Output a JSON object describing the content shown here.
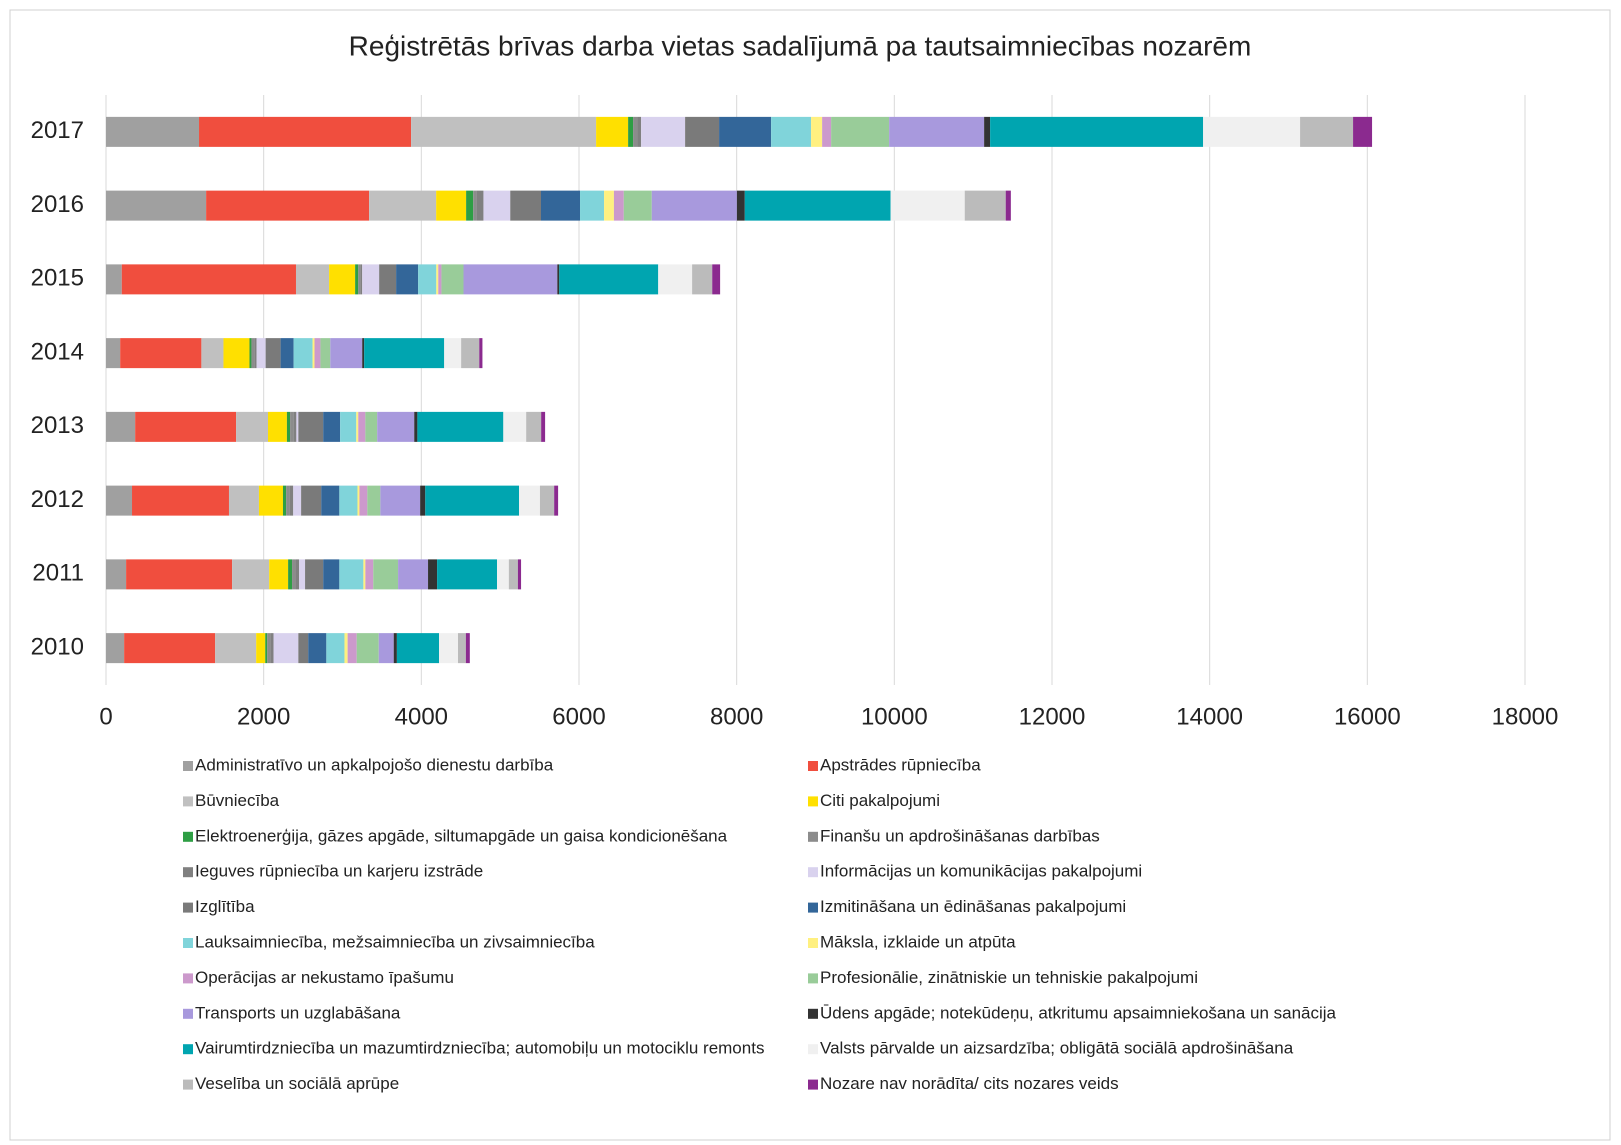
{
  "chart_data": {
    "type": "stacked_barh",
    "title": "Reģistrētās brīvas darba vietas sadalījumā pa tautsaimniecības nozarēm",
    "categories": [
      "2010",
      "2011",
      "2012",
      "2013",
      "2014",
      "2015",
      "2016",
      "2017"
    ],
    "xlim": [
      0,
      18000
    ],
    "xticks": [
      0,
      2000,
      4000,
      6000,
      8000,
      10000,
      12000,
      14000,
      16000,
      18000
    ],
    "grid": true,
    "legend": "bottom",
    "series": [
      {
        "name": "Administratīvo un apkalpojošo dienestu darbība",
        "color": "#a0a0a0",
        "values": [
          230,
          255,
          330,
          370,
          180,
          200,
          1270,
          1180
        ]
      },
      {
        "name": "Apstrādes rūpniecība",
        "color": "#f04e3e",
        "values": [
          1155,
          1345,
          1230,
          1280,
          1030,
          2210,
          2068,
          2690
        ]
      },
      {
        "name": "Būvniecība",
        "color": "#c0c0c0",
        "values": [
          520,
          470,
          380,
          405,
          280,
          420,
          850,
          2347
        ]
      },
      {
        "name": "Citi pakalpojumi",
        "color": "#ffe000",
        "values": [
          115,
          240,
          305,
          240,
          330,
          330,
          380,
          406
        ]
      },
      {
        "name": "Elektroenerģija, gāzes apgāde, siltumapgāde un gaisa kondicionēšana",
        "color": "#2e9e44",
        "values": [
          25,
          50,
          40,
          40,
          25,
          40,
          90,
          63
        ]
      },
      {
        "name": "Finanšu un apdrošināšanas darbības",
        "color": "#8c8c8c",
        "values": [
          40,
          50,
          40,
          40,
          40,
          25,
          40,
          51
        ]
      },
      {
        "name": "Ieguves rūpniecība un karjeru izstrāde",
        "color": "#808080",
        "values": [
          40,
          40,
          50,
          40,
          25,
          25,
          90,
          51
        ]
      },
      {
        "name": "Informācijas un komunikācijas pakalpojumi",
        "color": "#d9d2ee",
        "values": [
          315,
          75,
          100,
          25,
          115,
          215,
          340,
          558
        ]
      },
      {
        "name": "Izglītība",
        "color": "#7a7a7a",
        "values": [
          125,
          230,
          255,
          315,
          190,
          215,
          390,
          431
        ]
      },
      {
        "name": "Izmitināšana un ēdināšanas pakalpojumi",
        "color": "#336699",
        "values": [
          230,
          205,
          230,
          215,
          165,
          280,
          495,
          660
        ]
      },
      {
        "name": "Lauksaimniecība, mežsaimniecība un zivsaimniecība",
        "color": "#80d4da",
        "values": [
          230,
          305,
          230,
          205,
          240,
          230,
          305,
          507
        ]
      },
      {
        "name": "Māksla, izklaide un atpūta",
        "color": "#fff080",
        "values": [
          40,
          25,
          25,
          25,
          25,
          25,
          125,
          140
        ]
      },
      {
        "name": "Operācijas ar nekustamo īpašumu",
        "color": "#cc99cc",
        "values": [
          115,
          100,
          100,
          90,
          75,
          40,
          125,
          114
        ]
      },
      {
        "name": "Profesionālie, zinātniskie un tehniskie pakalpojumi",
        "color": "#99cc99",
        "values": [
          280,
          315,
          165,
          150,
          125,
          280,
          355,
          736
        ]
      },
      {
        "name": "Transports un uzglabāšana",
        "color": "#a899dd",
        "values": [
          190,
          380,
          505,
          470,
          405,
          1190,
          1080,
          1205
        ]
      },
      {
        "name": "Ūdens apgāde; notekūdeņu, atkritumu apsaimniekošana un sanācija",
        "color": "#333333",
        "values": [
          40,
          115,
          65,
          40,
          25,
          25,
          100,
          76
        ]
      },
      {
        "name": "Vairumtirdzniecība un mazumtirdzniecība; automobiļu un motociklu remonts",
        "color": "#00a5b0",
        "values": [
          535,
          760,
          1190,
          1090,
          1015,
          1255,
          1850,
          2702
        ]
      },
      {
        "name": "Valsts pārvalde un aizsardzība; obligātā sociālā apdrošināšana",
        "color": "#f0f0f0",
        "values": [
          240,
          150,
          265,
          290,
          215,
          430,
          940,
          1230
        ]
      },
      {
        "name": "Veselība un sociālā aprūpe",
        "color": "#bbbbbb",
        "values": [
          100,
          115,
          180,
          190,
          230,
          255,
          520,
          672
        ]
      },
      {
        "name": "Nozare nav norādīta/ cits nozares veids",
        "color": "#8b2a8f",
        "values": [
          50,
          40,
          50,
          50,
          40,
          100,
          65,
          241
        ]
      }
    ]
  }
}
